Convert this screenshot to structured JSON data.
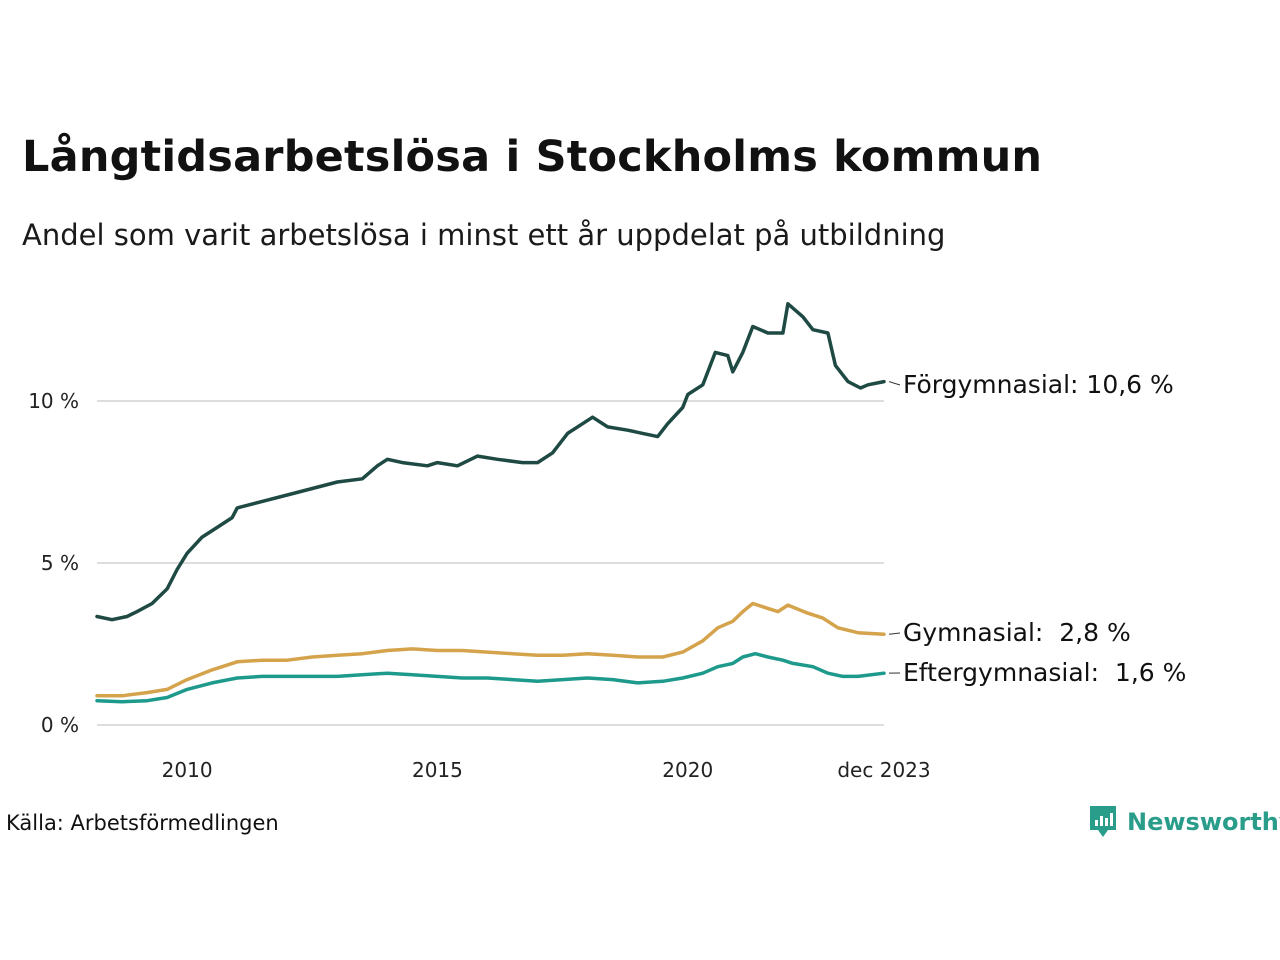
{
  "title": "Långtidsarbetslösa i Stockholms kommun",
  "subtitle": "Andel som varit arbetslösa i minst ett år uppdelat på utbildning",
  "source": "Källa: Arbetsförmedlingen",
  "brand": {
    "name": "Newsworthy",
    "icon": "newsworthy-logo-icon",
    "color": "#2a9d8a"
  },
  "chart_data": {
    "type": "line",
    "title": "Långtidsarbetslösa i Stockholms kommun",
    "xlabel": "",
    "ylabel": "",
    "xlim": [
      2008.2,
      2023.92
    ],
    "ylim": [
      0,
      13
    ],
    "y_ticks": [
      0,
      5,
      10
    ],
    "y_tick_labels": [
      "0 %",
      "5 %",
      "10 %"
    ],
    "x_ticks": [
      2010,
      2015,
      2020,
      2023.92
    ],
    "x_tick_labels": [
      "2010",
      "2015",
      "2020",
      "dec 2023"
    ],
    "grid": "horizontal",
    "series": [
      {
        "name": "Förgymnasial",
        "label": "Förgymnasial: 10,6 %",
        "color": "#1f4a44",
        "points": [
          [
            2008.2,
            3.35
          ],
          [
            2008.5,
            3.25
          ],
          [
            2008.8,
            3.35
          ],
          [
            2009.0,
            3.5
          ],
          [
            2009.3,
            3.75
          ],
          [
            2009.6,
            4.2
          ],
          [
            2009.8,
            4.8
          ],
          [
            2010.0,
            5.3
          ],
          [
            2010.3,
            5.8
          ],
          [
            2010.6,
            6.1
          ],
          [
            2010.9,
            6.4
          ],
          [
            2011.0,
            6.7
          ],
          [
            2011.5,
            6.9
          ],
          [
            2012.0,
            7.1
          ],
          [
            2012.5,
            7.3
          ],
          [
            2013.0,
            7.5
          ],
          [
            2013.5,
            7.6
          ],
          [
            2013.8,
            8.0
          ],
          [
            2014.0,
            8.2
          ],
          [
            2014.3,
            8.1
          ],
          [
            2014.8,
            8.0
          ],
          [
            2015.0,
            8.1
          ],
          [
            2015.4,
            8.0
          ],
          [
            2015.8,
            8.3
          ],
          [
            2016.2,
            8.2
          ],
          [
            2016.7,
            8.1
          ],
          [
            2017.0,
            8.1
          ],
          [
            2017.3,
            8.4
          ],
          [
            2017.6,
            9.0
          ],
          [
            2017.9,
            9.3
          ],
          [
            2018.1,
            9.5
          ],
          [
            2018.4,
            9.2
          ],
          [
            2018.8,
            9.1
          ],
          [
            2019.1,
            9.0
          ],
          [
            2019.4,
            8.9
          ],
          [
            2019.6,
            9.3
          ],
          [
            2019.9,
            9.8
          ],
          [
            2020.0,
            10.2
          ],
          [
            2020.3,
            10.5
          ],
          [
            2020.55,
            11.5
          ],
          [
            2020.8,
            11.4
          ],
          [
            2020.9,
            10.9
          ],
          [
            2021.1,
            11.5
          ],
          [
            2021.3,
            12.3
          ],
          [
            2021.6,
            12.1
          ],
          [
            2021.9,
            12.1
          ],
          [
            2022.0,
            13.0
          ],
          [
            2022.3,
            12.6
          ],
          [
            2022.5,
            12.2
          ],
          [
            2022.8,
            12.1
          ],
          [
            2022.95,
            11.1
          ],
          [
            2023.2,
            10.6
          ],
          [
            2023.45,
            10.4
          ],
          [
            2023.6,
            10.5
          ],
          [
            2023.92,
            10.6
          ]
        ]
      },
      {
        "name": "Gymnasial",
        "label": "Gymnasial:  2,8 %",
        "color": "#d4a34c",
        "points": [
          [
            2008.2,
            0.9
          ],
          [
            2008.7,
            0.9
          ],
          [
            2009.2,
            1.0
          ],
          [
            2009.6,
            1.1
          ],
          [
            2010.0,
            1.4
          ],
          [
            2010.5,
            1.7
          ],
          [
            2011.0,
            1.95
          ],
          [
            2011.5,
            2.0
          ],
          [
            2012.0,
            2.0
          ],
          [
            2012.5,
            2.1
          ],
          [
            2013.0,
            2.15
          ],
          [
            2013.5,
            2.2
          ],
          [
            2014.0,
            2.3
          ],
          [
            2014.5,
            2.35
          ],
          [
            2015.0,
            2.3
          ],
          [
            2015.5,
            2.3
          ],
          [
            2016.0,
            2.25
          ],
          [
            2016.5,
            2.2
          ],
          [
            2017.0,
            2.15
          ],
          [
            2017.5,
            2.15
          ],
          [
            2018.0,
            2.2
          ],
          [
            2018.5,
            2.15
          ],
          [
            2019.0,
            2.1
          ],
          [
            2019.5,
            2.1
          ],
          [
            2019.9,
            2.25
          ],
          [
            2020.3,
            2.6
          ],
          [
            2020.6,
            3.0
          ],
          [
            2020.9,
            3.2
          ],
          [
            2021.1,
            3.5
          ],
          [
            2021.3,
            3.75
          ],
          [
            2021.6,
            3.6
          ],
          [
            2021.8,
            3.5
          ],
          [
            2022.0,
            3.7
          ],
          [
            2022.4,
            3.45
          ],
          [
            2022.7,
            3.3
          ],
          [
            2023.0,
            3.0
          ],
          [
            2023.4,
            2.85
          ],
          [
            2023.92,
            2.8
          ]
        ]
      },
      {
        "name": "Eftergymnasial",
        "label": "Eftergymnasial:  1,6 %",
        "color": "#1e9a8c",
        "points": [
          [
            2008.2,
            0.75
          ],
          [
            2008.7,
            0.72
          ],
          [
            2009.2,
            0.75
          ],
          [
            2009.6,
            0.85
          ],
          [
            2010.0,
            1.1
          ],
          [
            2010.5,
            1.3
          ],
          [
            2011.0,
            1.45
          ],
          [
            2011.5,
            1.5
          ],
          [
            2012.0,
            1.5
          ],
          [
            2012.5,
            1.5
          ],
          [
            2013.0,
            1.5
          ],
          [
            2013.5,
            1.55
          ],
          [
            2014.0,
            1.6
          ],
          [
            2014.5,
            1.55
          ],
          [
            2015.0,
            1.5
          ],
          [
            2015.5,
            1.45
          ],
          [
            2016.0,
            1.45
          ],
          [
            2016.5,
            1.4
          ],
          [
            2017.0,
            1.35
          ],
          [
            2017.5,
            1.4
          ],
          [
            2018.0,
            1.45
          ],
          [
            2018.5,
            1.4
          ],
          [
            2019.0,
            1.3
          ],
          [
            2019.5,
            1.35
          ],
          [
            2019.9,
            1.45
          ],
          [
            2020.3,
            1.6
          ],
          [
            2020.6,
            1.8
          ],
          [
            2020.9,
            1.9
          ],
          [
            2021.1,
            2.1
          ],
          [
            2021.35,
            2.2
          ],
          [
            2021.6,
            2.1
          ],
          [
            2021.9,
            2.0
          ],
          [
            2022.1,
            1.9
          ],
          [
            2022.5,
            1.8
          ],
          [
            2022.8,
            1.6
          ],
          [
            2023.1,
            1.5
          ],
          [
            2023.4,
            1.5
          ],
          [
            2023.92,
            1.6
          ]
        ]
      }
    ]
  }
}
